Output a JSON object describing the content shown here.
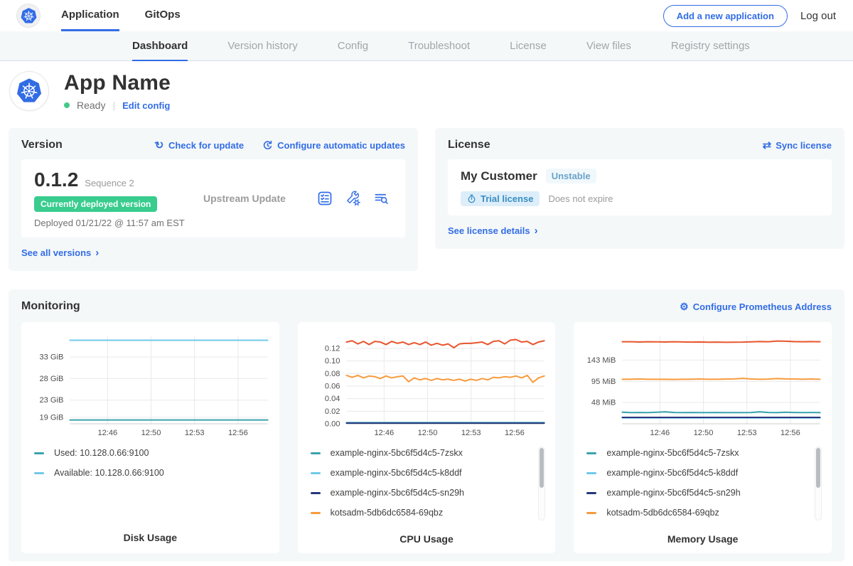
{
  "colors": {
    "primary": "#326de6",
    "success_badge": "#38cc8e",
    "teal": "#3aa3ac",
    "light_blue": "#70c9e8",
    "navy": "#27377d",
    "orange": "#f79b3e",
    "red_orange": "#e8562d"
  },
  "icons": {
    "chevron_right": "›",
    "sync": "⇄",
    "gear": "⚙",
    "refresh": "↻",
    "divider": "|"
  },
  "navbar": {
    "tabs": [
      {
        "label": "Application",
        "active": true
      },
      {
        "label": "GitOps",
        "active": false
      }
    ],
    "add_app_button": "Add a new application",
    "logout_label": "Log out"
  },
  "subnav": {
    "items": [
      {
        "label": "Dashboard",
        "active": true
      },
      {
        "label": "Version history",
        "active": false
      },
      {
        "label": "Config",
        "active": false
      },
      {
        "label": "Troubleshoot",
        "active": false
      },
      {
        "label": "License",
        "active": false
      },
      {
        "label": "View files",
        "active": false
      },
      {
        "label": "Registry settings",
        "active": false
      }
    ]
  },
  "app_header": {
    "title": "App Name",
    "status": "Ready",
    "edit_config": "Edit config"
  },
  "version": {
    "title": "Version",
    "check_update": "Check for update",
    "configure_updates": "Configure automatic updates",
    "number": "0.1.2",
    "sequence": "Sequence 2",
    "deployed_badge": "Currently deployed version",
    "deployed_text": "Deployed 01/21/22 @ 11:57 am EST",
    "source": "Upstream Update",
    "see_all": "See all versions"
  },
  "license": {
    "title": "License",
    "sync": "Sync license",
    "customer": "My Customer",
    "channel": "Unstable",
    "type": "Trial license",
    "expiry": "Does not expire",
    "details": "See license details"
  },
  "monitoring": {
    "title": "Monitoring",
    "configure": "Configure Prometheus Address"
  },
  "chart_data": [
    {
      "type": "line",
      "title": "Disk Usage",
      "ylim": [
        17.5,
        37.8
      ],
      "yticks": [
        {
          "value": 33,
          "label": "33 GiB"
        },
        {
          "value": 28,
          "label": "28 GiB"
        },
        {
          "value": 23,
          "label": "23 GiB"
        },
        {
          "value": 19,
          "label": "19 GiB"
        }
      ],
      "xticks": [
        {
          "f": 0.19,
          "label": "12:46"
        },
        {
          "f": 0.41,
          "label": "12:50"
        },
        {
          "f": 0.63,
          "label": "12:53"
        },
        {
          "f": 0.85,
          "label": "12:56"
        }
      ],
      "series": [
        {
          "name": "Used: 10.128.0.66:9100",
          "color": "#3aa3ac",
          "values": [
            18.4,
            18.4
          ]
        },
        {
          "name": "Available: 10.128.0.66:9100",
          "color": "#70c9e8",
          "values": [
            36.9,
            36.9
          ]
        }
      ],
      "legend_scrollbar": false
    },
    {
      "type": "line",
      "title": "CPU Usage",
      "ylim": [
        0,
        0.139
      ],
      "yticks": [
        {
          "value": 0.12,
          "label": "0.12"
        },
        {
          "value": 0.1,
          "label": "0.10"
        },
        {
          "value": 0.08,
          "label": "0.08"
        },
        {
          "value": 0.06,
          "label": "0.06"
        },
        {
          "value": 0.04,
          "label": "0.04"
        },
        {
          "value": 0.02,
          "label": "0.02"
        },
        {
          "value": 0.0,
          "label": "0.00"
        }
      ],
      "xticks": [
        {
          "f": 0.19,
          "label": "12:46"
        },
        {
          "f": 0.41,
          "label": "12:50"
        },
        {
          "f": 0.63,
          "label": "12:53"
        },
        {
          "f": 0.85,
          "label": "12:56"
        }
      ],
      "series": [
        {
          "name": "example-nginx-5bc6f5d4c5-7zskx",
          "color": "#3aa3ac",
          "values": [
            0.002,
            0.002
          ]
        },
        {
          "name": "example-nginx-5bc6f5d4c5-k8ddf",
          "color": "#70c9e8",
          "values": [
            0.0015,
            0.0015
          ]
        },
        {
          "name": "example-nginx-5bc6f5d4c5-sn29h",
          "color": "#27377d",
          "values": [
            0.001,
            0.001
          ]
        },
        {
          "name": "kotsadm-5db6dc6584-69qbz",
          "color": "#f79b3e",
          "values": [
            0.077,
            0.074,
            0.077,
            0.073,
            0.076,
            0.075,
            0.072,
            0.076,
            0.073,
            0.075,
            0.076,
            0.067,
            0.073,
            0.07,
            0.072,
            0.069,
            0.072,
            0.07,
            0.071,
            0.069,
            0.071,
            0.068,
            0.071,
            0.069,
            0.072,
            0.07,
            0.074,
            0.073,
            0.075,
            0.074,
            0.076,
            0.073,
            0.077,
            0.066,
            0.073,
            0.076
          ]
        },
        {
          "name": "",
          "color": "#e8562d",
          "values": [
            0.13,
            0.132,
            0.127,
            0.131,
            0.126,
            0.131,
            0.13,
            0.126,
            0.131,
            0.128,
            0.13,
            0.126,
            0.129,
            0.126,
            0.13,
            0.125,
            0.128,
            0.125,
            0.127,
            0.121,
            0.127,
            0.128,
            0.128,
            0.129,
            0.13,
            0.126,
            0.131,
            0.132,
            0.127,
            0.133,
            0.134,
            0.13,
            0.131,
            0.126,
            0.13,
            0.132
          ]
        }
      ],
      "legend_scrollbar": true
    },
    {
      "type": "line",
      "title": "Memory Usage",
      "ylim": [
        0,
        196
      ],
      "yticks": [
        {
          "value": 143,
          "label": "143 MiB"
        },
        {
          "value": 95,
          "label": "95 MiB"
        },
        {
          "value": 48,
          "label": "48 MiB"
        }
      ],
      "xticks": [
        {
          "f": 0.19,
          "label": "12:46"
        },
        {
          "f": 0.41,
          "label": "12:50"
        },
        {
          "f": 0.63,
          "label": "12:53"
        },
        {
          "f": 0.85,
          "label": "12:56"
        }
      ],
      "series": [
        {
          "name": "example-nginx-5bc6f5d4c5-7zskx",
          "color": "#3aa3ac",
          "values": [
            26,
            25,
            25.4,
            25,
            25.8,
            26.8,
            25.4,
            25,
            25.4,
            25,
            25,
            25.4,
            25,
            25,
            25,
            25.4,
            26.8,
            25.4,
            25,
            25.8,
            25.4,
            25,
            25.4,
            25
          ]
        },
        {
          "name": "example-nginx-5bc6f5d4c5-k8ddf",
          "color": "#70c9e8",
          "values": [
            13.2,
            13.2
          ]
        },
        {
          "name": "example-nginx-5bc6f5d4c5-sn29h",
          "color": "#27377d",
          "values": [
            14.5,
            14.5
          ]
        },
        {
          "name": "kotsadm-5db6dc6584-69qbz",
          "color": "#f79b3e",
          "values": [
            100,
            100,
            100.4,
            100,
            100,
            99.8,
            99.5,
            100,
            100,
            100.4,
            100,
            100,
            100.2,
            100.8,
            101.8,
            100.4,
            100,
            100.2,
            101.4,
            100.8,
            100.4,
            100,
            100.4,
            100
          ]
        },
        {
          "name": "",
          "color": "#e8562d",
          "values": [
            184,
            184,
            183.5,
            184,
            183.8,
            183.5,
            184,
            183.6,
            183.2,
            183.5,
            183,
            183.2,
            182.8,
            183,
            183.2,
            183.8,
            184.5,
            184,
            185.5,
            185,
            184.3,
            184,
            184.2,
            184
          ]
        }
      ],
      "legend_scrollbar": true
    }
  ]
}
